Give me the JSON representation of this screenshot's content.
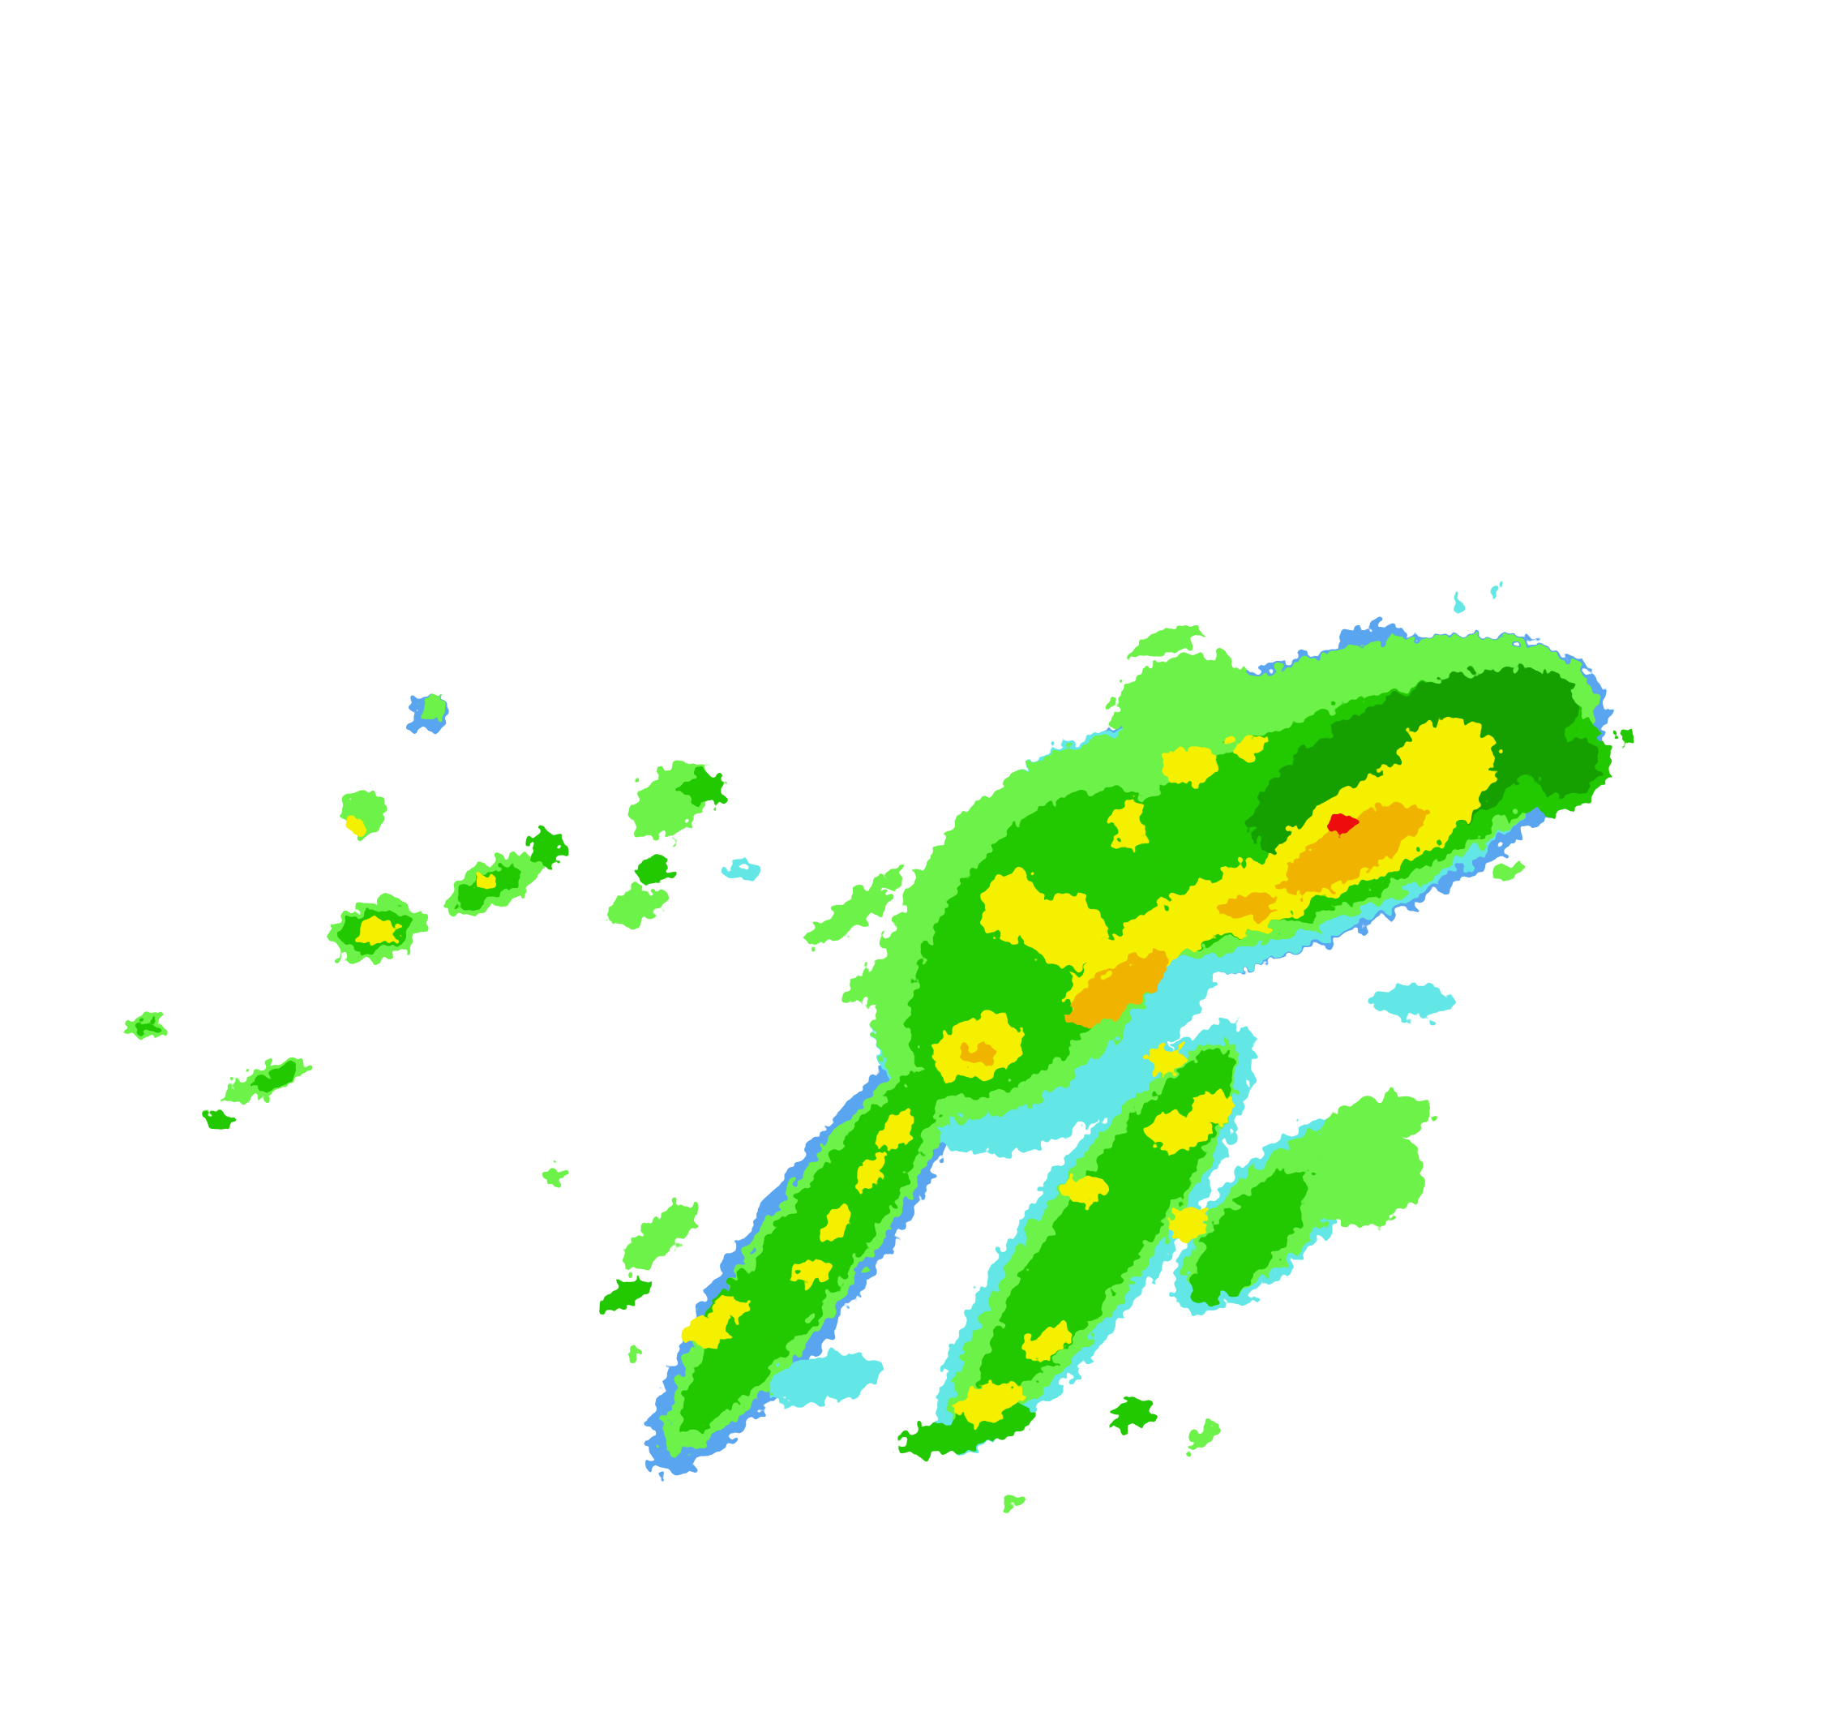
{
  "map": {
    "type": "weather radar reflectivity",
    "background": "#ffffff",
    "palette": {
      "light_blue": "#5aa5f0",
      "cyan": "#64e6e6",
      "light_green": "#6cf24a",
      "green": "#22c800",
      "dark_green": "#14a000",
      "yellow": "#f4f000",
      "orange": "#f0b400",
      "red": "#ee1010"
    }
  }
}
